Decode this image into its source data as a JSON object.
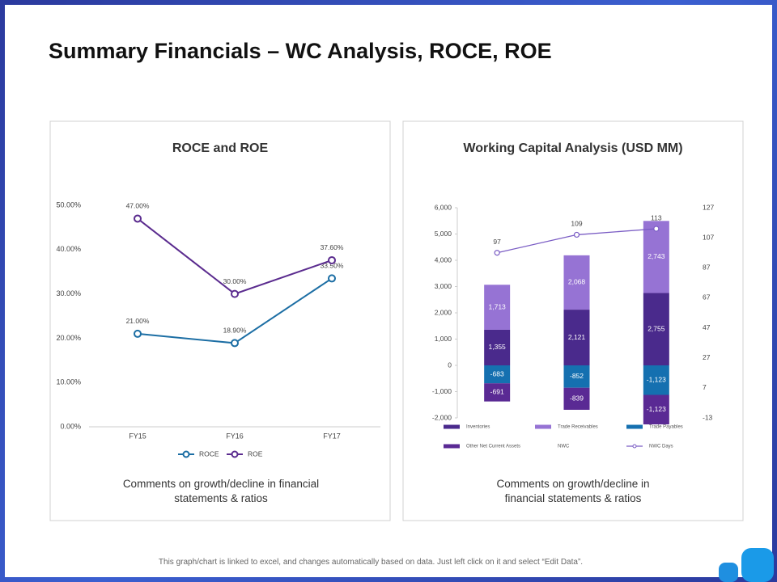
{
  "title": "Summary Financials – WC Analysis, ROCE, ROE",
  "footer": "This graph/chart is linked to excel, and changes automatically based on data. Just left click on it and select “Edit Data”.",
  "comments": [
    "Comments on growth/decline in financial statements & ratios",
    "Comments on growth/decline in financial statements & ratios"
  ],
  "chart_data": [
    {
      "type": "line",
      "title": "ROCE and ROE",
      "categories": [
        "FY15",
        "FY16",
        "FY17"
      ],
      "series": [
        {
          "name": "ROCE",
          "color": "#1c6ea4",
          "values": [
            21,
            18.9,
            33.5
          ],
          "value_labels": [
            "21.00%",
            "18.90%",
            "33.50%"
          ]
        },
        {
          "name": "ROE",
          "color": "#5b2c8f",
          "values": [
            47,
            30,
            37.6
          ],
          "value_labels": [
            "47.00%",
            "30.00%",
            "37.60%"
          ]
        }
      ],
      "ylim": [
        0,
        50
      ],
      "yticks": [
        {
          "value": 0,
          "label": "0.00%"
        },
        {
          "value": 10,
          "label": "10.00%"
        },
        {
          "value": 20,
          "label": "20.00%"
        },
        {
          "value": 30,
          "label": "30.00%"
        },
        {
          "value": 40,
          "label": "40.00%"
        },
        {
          "value": 50,
          "label": "50.00%"
        }
      ],
      "legend": "bottom"
    },
    {
      "type": "bar",
      "stacked": true,
      "title": "Working Capital Analysis (USD MM)",
      "categories": [
        null,
        null,
        null
      ],
      "series": [
        {
          "name": "Inventories",
          "type": "bar",
          "color": "#4a2a8c",
          "values": [
            1355,
            2121,
            2755
          ],
          "value_labels": [
            "1,355",
            "2,121",
            "2,755"
          ]
        },
        {
          "name": "Trade Receivables",
          "type": "bar",
          "color": "#9673d4",
          "values": [
            1713,
            2068,
            2743
          ],
          "value_labels": [
            "1,713",
            "2,068",
            "2,743"
          ]
        },
        {
          "name": "Trade Payables",
          "type": "bar",
          "color": "#1570b0",
          "values": [
            -683,
            -852,
            -1123
          ],
          "value_labels": [
            "-683",
            "-852",
            "-1,123"
          ]
        },
        {
          "name": "Other Net Current Assets",
          "type": "bar",
          "color": "#5a2a94",
          "values": [
            -691,
            -839,
            -1123
          ],
          "value_labels": [
            "-691",
            "-839",
            "-1,123"
          ]
        },
        {
          "name": "NWC",
          "type": "line",
          "axis": "y2",
          "values": [
            null,
            null,
            null
          ]
        },
        {
          "name": "NWC Days",
          "type": "line",
          "axis": "y2",
          "color": "#7a5cc4",
          "values": [
            97,
            109,
            113
          ]
        }
      ],
      "ylim": [
        -2000,
        6000
      ],
      "yticks": [
        {
          "value": -2000,
          "label": "-2,000"
        },
        {
          "value": -1000,
          "label": "-1,000"
        },
        0,
        {
          "value": 1000,
          "label": "1,000"
        },
        {
          "value": 2000,
          "label": "2,000"
        },
        {
          "value": 3000,
          "label": "3,000"
        },
        {
          "value": 4000,
          "label": "4,000"
        },
        {
          "value": 5000,
          "label": "5,000"
        },
        {
          "value": 6000,
          "label": "6,000"
        }
      ],
      "y2lim": [
        -13,
        127
      ],
      "y2ticks": [
        -13,
        7,
        27,
        47,
        67,
        87,
        107,
        127
      ],
      "legend": "bottom"
    }
  ]
}
